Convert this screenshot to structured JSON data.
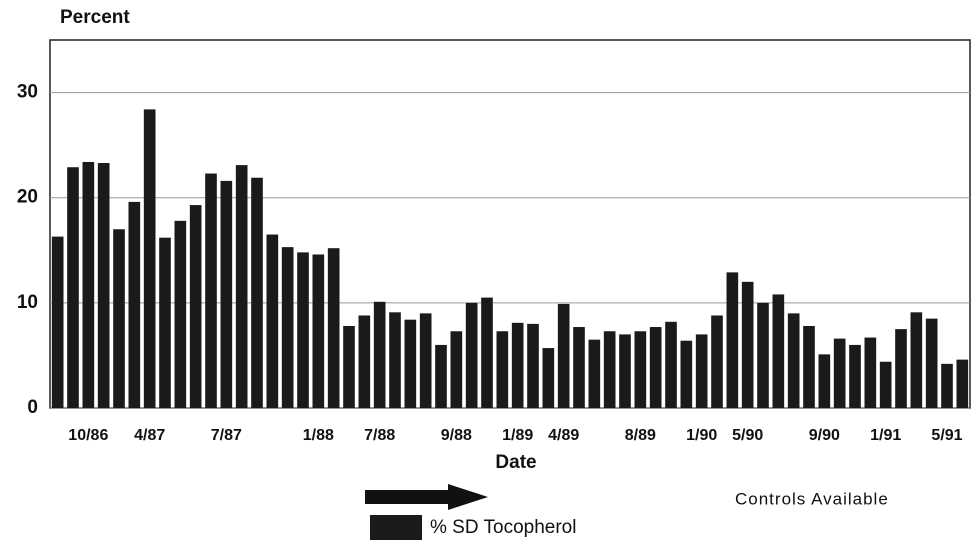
{
  "chart_data": {
    "type": "bar",
    "y_label": "Percent",
    "x_label": "Date",
    "categories": [
      null,
      null,
      "10/86",
      null,
      null,
      null,
      "4/87",
      null,
      null,
      null,
      null,
      "7/87",
      null,
      null,
      null,
      null,
      null,
      "1/88",
      null,
      null,
      null,
      "7/88",
      null,
      null,
      null,
      null,
      "9/88",
      null,
      null,
      null,
      "1/89",
      null,
      null,
      "4/89",
      null,
      null,
      null,
      null,
      "8/89",
      null,
      null,
      null,
      "1/90",
      null,
      null,
      "5/90",
      null,
      null,
      null,
      null,
      "9/90",
      null,
      null,
      null,
      "1/91",
      null,
      null,
      null,
      "5/91",
      null
    ],
    "series": [
      {
        "name": "% SD Tocopherol",
        "color": "#1a1a1a",
        "values": [
          16.3,
          22.9,
          23.4,
          23.3,
          17.0,
          19.6,
          28.4,
          16.2,
          17.8,
          19.3,
          22.3,
          21.6,
          23.1,
          21.9,
          16.5,
          15.3,
          14.8,
          14.6,
          15.2,
          7.8,
          8.8,
          10.1,
          9.1,
          8.4,
          9.0,
          6.0,
          7.3,
          10.0,
          10.5,
          7.3,
          8.1,
          8.0,
          5.7,
          9.9,
          7.7,
          6.5,
          7.3,
          7.0,
          7.3,
          7.7,
          8.2,
          6.4,
          7.0,
          8.8,
          12.9,
          12.0,
          10.0,
          10.8,
          9.0,
          7.8,
          5.1,
          6.6,
          6.0,
          6.7,
          4.4,
          7.5,
          9.1,
          8.5,
          4.2,
          4.6
        ]
      }
    ],
    "annotation": "Controls Available",
    "ylim": [
      0,
      35
    ],
    "yticks": [
      0,
      10,
      20,
      30
    ],
    "grid": true
  }
}
